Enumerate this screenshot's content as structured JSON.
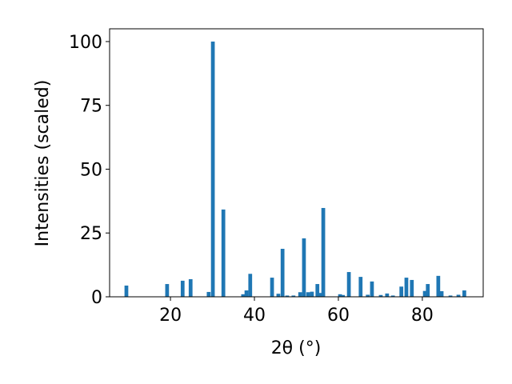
{
  "chart_data": {
    "type": "bar",
    "xlabel": "2θ (°)",
    "ylabel": "Intensities (scaled)",
    "x": [
      9.5,
      19.2,
      22.9,
      24.8,
      29.1,
      30.1,
      32.6,
      37.3,
      38.1,
      39.0,
      44.2,
      45.7,
      46.7,
      47.8,
      49.3,
      50.9,
      51.8,
      52.8,
      53.7,
      55.0,
      55.8,
      56.4,
      60.4,
      61.1,
      62.5,
      65.3,
      67.0,
      68.0,
      70.1,
      71.6,
      73.0,
      75.0,
      76.2,
      77.5,
      80.6,
      81.3,
      83.8,
      84.6,
      86.7,
      88.6,
      90.0
    ],
    "values": [
      4.4,
      5.0,
      6.3,
      6.9,
      1.9,
      100,
      34.2,
      1.0,
      2.5,
      9.0,
      7.5,
      1.2,
      18.8,
      0.5,
      0.5,
      1.8,
      22.9,
      1.8,
      2.0,
      5.0,
      1.5,
      34.8,
      1.0,
      0.7,
      9.7,
      7.8,
      0.8,
      6.0,
      0.7,
      1.3,
      0.5,
      4.0,
      7.5,
      6.6,
      2.3,
      5.0,
      8.2,
      2.2,
      0.5,
      0.8,
      2.5
    ],
    "color": "#1f77b4",
    "xlim": [
      5.5,
      94.5
    ],
    "ylim": [
      0,
      105
    ],
    "xticks": [
      20,
      40,
      60,
      80
    ],
    "yticks": [
      0,
      25,
      50,
      75,
      100
    ],
    "grid": false
  }
}
